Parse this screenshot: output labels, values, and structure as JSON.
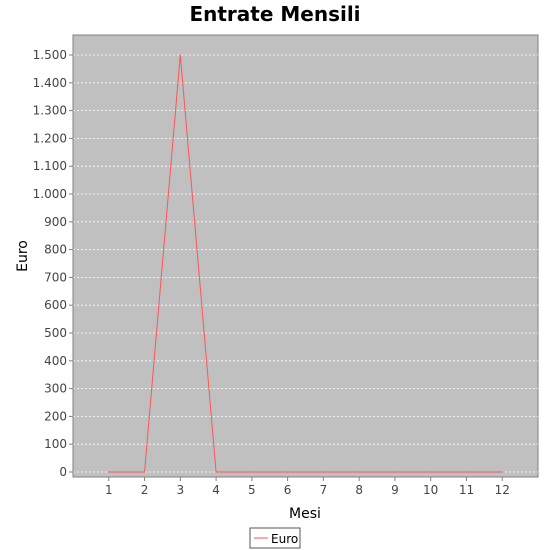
{
  "chart_data": {
    "type": "line",
    "title": "Entrate Mensili",
    "xlabel": "Mesi",
    "ylabel": "Euro",
    "x": [
      1,
      2,
      3,
      4,
      5,
      6,
      7,
      8,
      9,
      10,
      11,
      12
    ],
    "series": [
      {
        "name": "Euro",
        "values": [
          0,
          0,
          1500,
          0,
          0,
          0,
          0,
          0,
          0,
          0,
          0,
          0
        ]
      }
    ],
    "xlim": [
      0,
      13
    ],
    "ylim": [
      0,
      1500
    ],
    "y_ticks": [
      0,
      100,
      200,
      300,
      400,
      500,
      600,
      700,
      800,
      900,
      1000,
      1100,
      1200,
      1300,
      1400,
      1500
    ],
    "y_tick_labels": [
      "0",
      "100",
      "200",
      "300",
      "400",
      "500",
      "600",
      "700",
      "800",
      "900",
      "1.000",
      "1.100",
      "1.200",
      "1.300",
      "1.400",
      "1.500"
    ],
    "x_tick_labels": [
      "1",
      "2",
      "3",
      "4",
      "5",
      "6",
      "7",
      "8",
      "9",
      "10",
      "11",
      "12"
    ],
    "grid": true,
    "legend_position": "bottom",
    "colors": {
      "plot_background": "#c0c0c0",
      "series": "#ff5555",
      "gridline": "#ffffff"
    }
  }
}
